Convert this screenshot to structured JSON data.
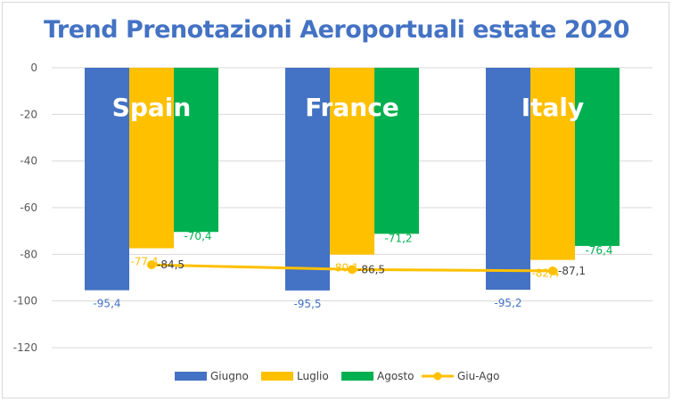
{
  "colors": {
    "giugno": "#4472c4",
    "luglio": "#ffc000",
    "agosto": "#00b050",
    "giu_ago": "#ffc000",
    "grid": "#d9d9d9",
    "title": "#4472c4"
  },
  "chart_data": {
    "type": "bar",
    "title": "Trend Prenotazioni Aeroportuali estate 2020",
    "xlabel": "",
    "ylabel": "",
    "ylim": [
      -120,
      0
    ],
    "yticks": [
      0,
      -20,
      -40,
      -60,
      -80,
      -100,
      -120
    ],
    "grid": true,
    "legend_position": "bottom",
    "categories": [
      "Spain",
      "France",
      "Italy"
    ],
    "series": [
      {
        "name": "Giugno",
        "type": "bar",
        "values": [
          -95.4,
          -95.5,
          -95.2
        ],
        "labels": [
          "-95,4",
          "-95,5",
          "-95,2"
        ]
      },
      {
        "name": "Luglio",
        "type": "bar",
        "values": [
          -77.4,
          -80.1,
          -82.4
        ],
        "labels": [
          "-77,4",
          "-80,1",
          "-82,4"
        ]
      },
      {
        "name": "Agosto",
        "type": "bar",
        "values": [
          -70.4,
          -71.2,
          -76.4
        ],
        "labels": [
          "-70,4",
          "-71,2",
          "-76,4"
        ]
      },
      {
        "name": "Giu-Ago",
        "type": "line",
        "values": [
          -84.5,
          -86.5,
          -87.1
        ],
        "labels": [
          "-84,5",
          "-86,5",
          "-87,1"
        ]
      }
    ]
  }
}
